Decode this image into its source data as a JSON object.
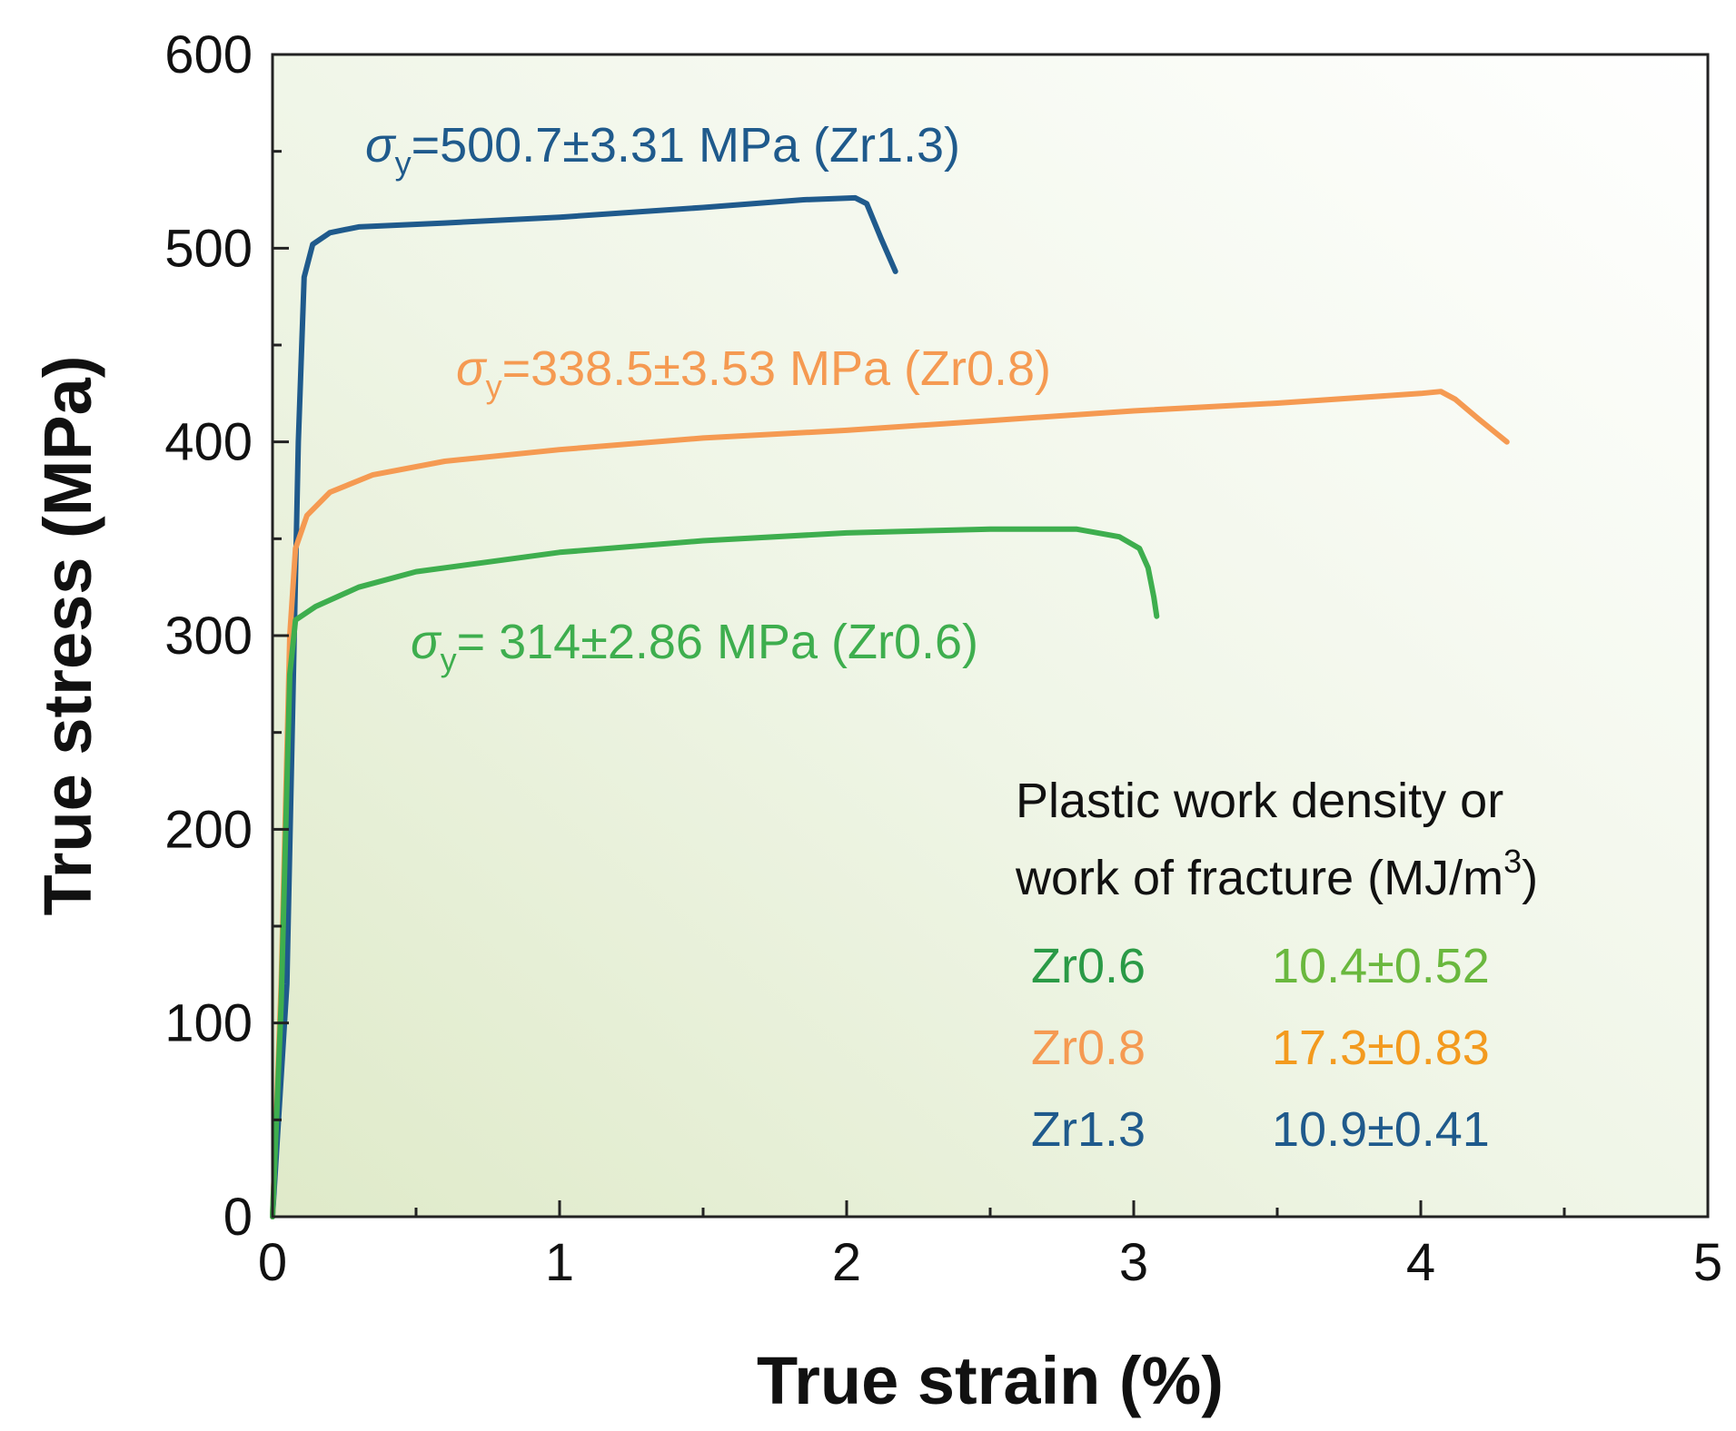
{
  "chart_data": {
    "type": "line",
    "xlabel": "True strain (%)",
    "ylabel": "True stress (MPa)",
    "xlim": [
      0,
      5
    ],
    "ylim": [
      0,
      600
    ],
    "xticks": [
      0,
      1,
      2,
      3,
      4,
      5
    ],
    "yticks": [
      0,
      100,
      200,
      300,
      400,
      500,
      600
    ],
    "x_minor_ticks": [
      0.5,
      1.5,
      2.5,
      3.5,
      4.5
    ],
    "y_minor_ticks": [
      50,
      150,
      250,
      350,
      450,
      550
    ],
    "grid": false,
    "background": "light green gradient, strongest bottom-left",
    "series": [
      {
        "name": "Zr1.3",
        "color": "#1f5a8c",
        "points": [
          [
            0,
            0
          ],
          [
            0.05,
            120
          ],
          [
            0.09,
            400
          ],
          [
            0.11,
            485
          ],
          [
            0.14,
            502
          ],
          [
            0.2,
            508
          ],
          [
            0.3,
            511
          ],
          [
            0.6,
            513
          ],
          [
            1.0,
            516
          ],
          [
            1.5,
            521
          ],
          [
            1.85,
            525
          ],
          [
            2.03,
            526
          ],
          [
            2.07,
            523
          ],
          [
            2.12,
            505
          ],
          [
            2.17,
            488
          ]
        ]
      },
      {
        "name": "Zr0.8",
        "color": "#f59a52",
        "points": [
          [
            0,
            0
          ],
          [
            0.03,
            120
          ],
          [
            0.06,
            300
          ],
          [
            0.08,
            345
          ],
          [
            0.12,
            362
          ],
          [
            0.2,
            374
          ],
          [
            0.35,
            383
          ],
          [
            0.6,
            390
          ],
          [
            1.0,
            396
          ],
          [
            1.5,
            402
          ],
          [
            2.0,
            406
          ],
          [
            2.5,
            411
          ],
          [
            3.0,
            416
          ],
          [
            3.5,
            420
          ],
          [
            4.0,
            425
          ],
          [
            4.07,
            426
          ],
          [
            4.12,
            422
          ],
          [
            4.2,
            412
          ],
          [
            4.3,
            400
          ]
        ]
      },
      {
        "name": "Zr0.6",
        "color": "#3eae4e",
        "points": [
          [
            0,
            0
          ],
          [
            0.03,
            110
          ],
          [
            0.06,
            280
          ],
          [
            0.08,
            308
          ],
          [
            0.15,
            315
          ],
          [
            0.3,
            325
          ],
          [
            0.5,
            333
          ],
          [
            1.0,
            343
          ],
          [
            1.5,
            349
          ],
          [
            2.0,
            353
          ],
          [
            2.5,
            355
          ],
          [
            2.8,
            355
          ],
          [
            2.95,
            351
          ],
          [
            3.02,
            345
          ],
          [
            3.05,
            335
          ],
          [
            3.07,
            320
          ],
          [
            3.08,
            310
          ]
        ]
      }
    ],
    "annotations": [
      {
        "prefix": "σ",
        "sub": "y",
        "text": "=500.7±3.31 MPa (Zr1.3)",
        "color": "#1f5a8c"
      },
      {
        "prefix": "σ",
        "sub": "y",
        "text": "=338.5±3.53 MPa (Zr0.8)",
        "color": "#f59a52"
      },
      {
        "prefix": "σ",
        "sub": "y",
        "text": "= 314±2.86 MPa (Zr0.6)",
        "color": "#3eae4e"
      }
    ],
    "table": {
      "title_line1": "Plastic work density or",
      "title_line2": "work of fracture (MJ/m",
      "title_sup": "3",
      "title_end": ")",
      "rows": [
        {
          "label": "Zr0.6",
          "value": "10.4±0.52",
          "label_color": "#2a9a46",
          "value_color": "#6ab83e"
        },
        {
          "label": "Zr0.8",
          "value": "17.3±0.83",
          "label_color": "#f59a52",
          "value_color": "#f39a1e"
        },
        {
          "label": "Zr1.3",
          "value": "10.9±0.41",
          "label_color": "#1f5a8c",
          "value_color": "#1f5a8c"
        }
      ]
    }
  }
}
